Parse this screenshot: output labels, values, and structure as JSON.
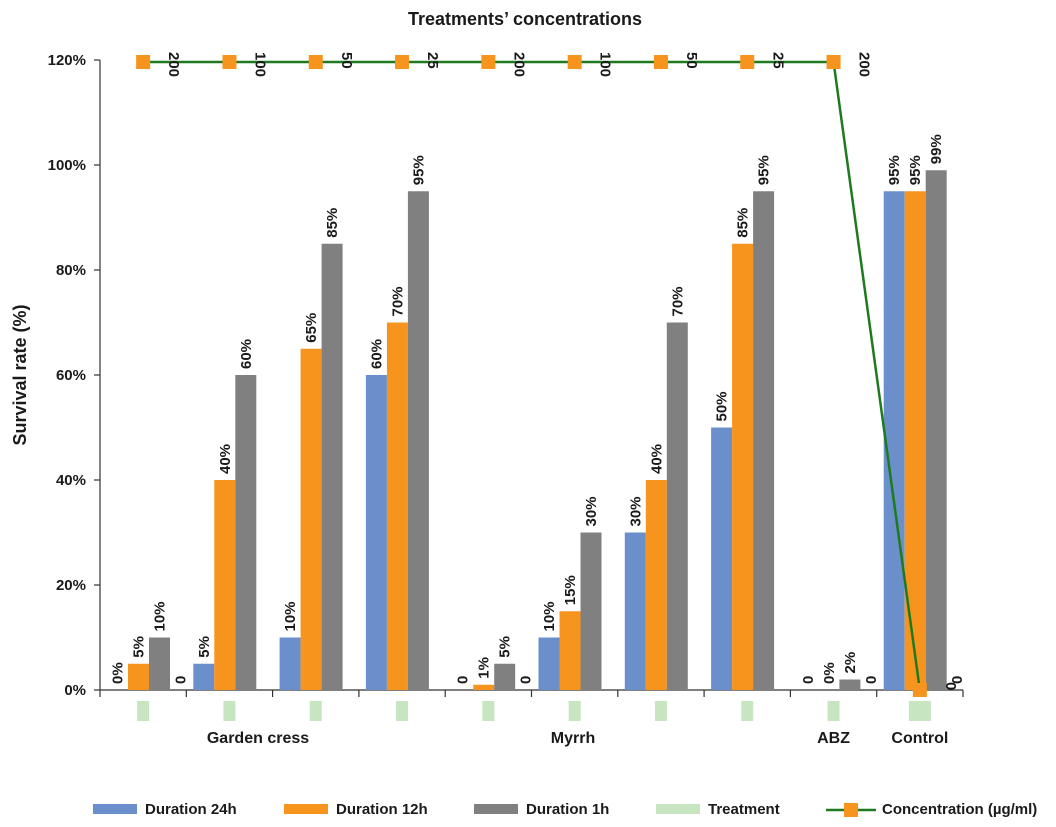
{
  "chart_data": {
    "type": "bar",
    "title": "Treatments’ concentrations",
    "ylabel": "Survival rate (%)",
    "ylim": [
      0,
      1.2
    ],
    "yticks": [
      "0%",
      "20%",
      "40%",
      "60%",
      "80%",
      "100%",
      "120%"
    ],
    "group_labels": [
      "",
      "Garden cress",
      "",
      "",
      "",
      "Myrrh",
      "",
      "",
      "ABZ",
      "Control"
    ],
    "series": [
      {
        "name": "Duration 24h",
        "color": "#6a8fcb",
        "values": [
          0,
          0.05,
          0.1,
          0.6,
          0,
          0.1,
          0.3,
          0.5,
          0,
          0.95
        ],
        "labels": [
          "0%",
          "5%",
          "10%",
          "60%",
          "0",
          "10%",
          "30%",
          "50%",
          "0",
          "95%"
        ]
      },
      {
        "name": "Duration 12h",
        "color": "#f7941d",
        "values": [
          0.05,
          0.4,
          0.65,
          0.7,
          0.01,
          0.15,
          0.4,
          0.85,
          0,
          0.95
        ],
        "labels": [
          "5%",
          "40%",
          "65%",
          "70%",
          "1%",
          "15%",
          "40%",
          "85%",
          "0%",
          "95%"
        ]
      },
      {
        "name": "Duration 1h",
        "color": "#808080",
        "values": [
          0.1,
          0.6,
          0.85,
          0.95,
          0.05,
          0.3,
          0.7,
          0.95,
          0.02,
          0.99
        ],
        "labels": [
          "10%",
          "60%",
          "85%",
          "95%",
          "5%",
          "30%",
          "70%",
          "95%",
          "2%",
          "99%"
        ]
      }
    ],
    "extra_labels": [
      "0",
      "",
      "",
      "",
      "0",
      "",
      "",
      "",
      "0",
      "0"
    ],
    "treatment": {
      "name": "Treatment",
      "color": "#c6e5c0"
    },
    "concentration": {
      "name": "Concentration (µg/ml)",
      "line_color": "#1f7a1f",
      "marker_color": "#f7941d",
      "values": [
        200,
        100,
        50,
        25,
        200,
        100,
        50,
        25,
        200,
        0
      ],
      "labels": [
        "200",
        "100",
        "50",
        "25",
        "200",
        "100",
        "50",
        "25",
        "200",
        "0"
      ]
    },
    "legend_position": "bottom"
  }
}
